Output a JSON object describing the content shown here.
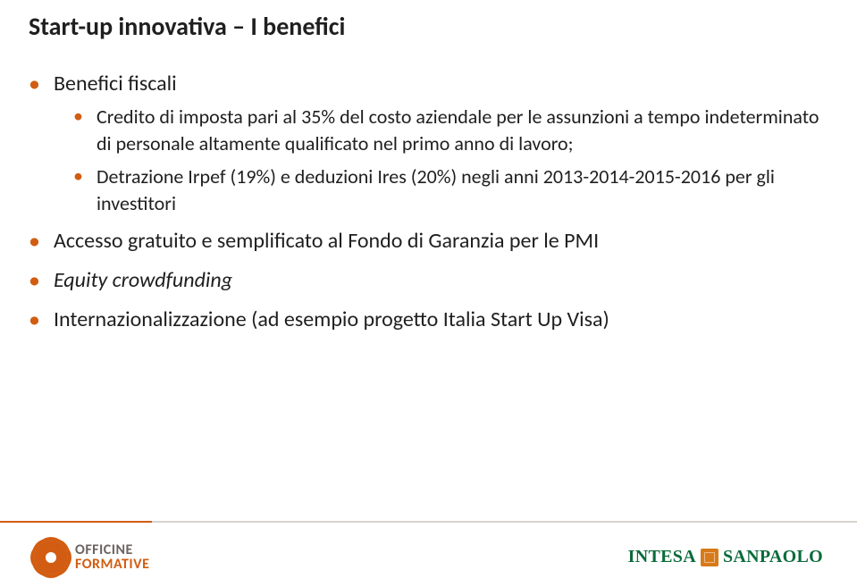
{
  "title": "Start-up innovativa – I benefici",
  "bullets": {
    "b1": {
      "label": "Benefici fiscali",
      "sub1": "Credito di imposta pari al 35% del costo aziendale per le assunzioni a tempo indeterminato di personale altamente qualificato nel primo anno di lavoro;",
      "sub2": "Detrazione Irpef (19%) e deduzioni Ires (20%) negli anni 2013-2014-2015-2016 per gli investitori"
    },
    "b2": "Accesso gratuito e semplificato al Fondo di Garanzia per le PMI",
    "b3": "Equity crowdfunding",
    "b4": "Internazionalizzazione (ad esempio progetto Italia Start Up Visa)"
  },
  "footer": {
    "logo_left_line1": "OFFICINE",
    "logo_left_line2": "FORMATIVE",
    "logo_right_part1": "INTESA",
    "logo_right_part2": "SANPAOLO"
  },
  "colors": {
    "accent": "#d25d12",
    "text": "#1f1f1f",
    "footer_grey": "#d7d2ce",
    "bank_green": "#0b6b3a",
    "bank_orange": "#d87a1a",
    "background": "#ffffff"
  }
}
